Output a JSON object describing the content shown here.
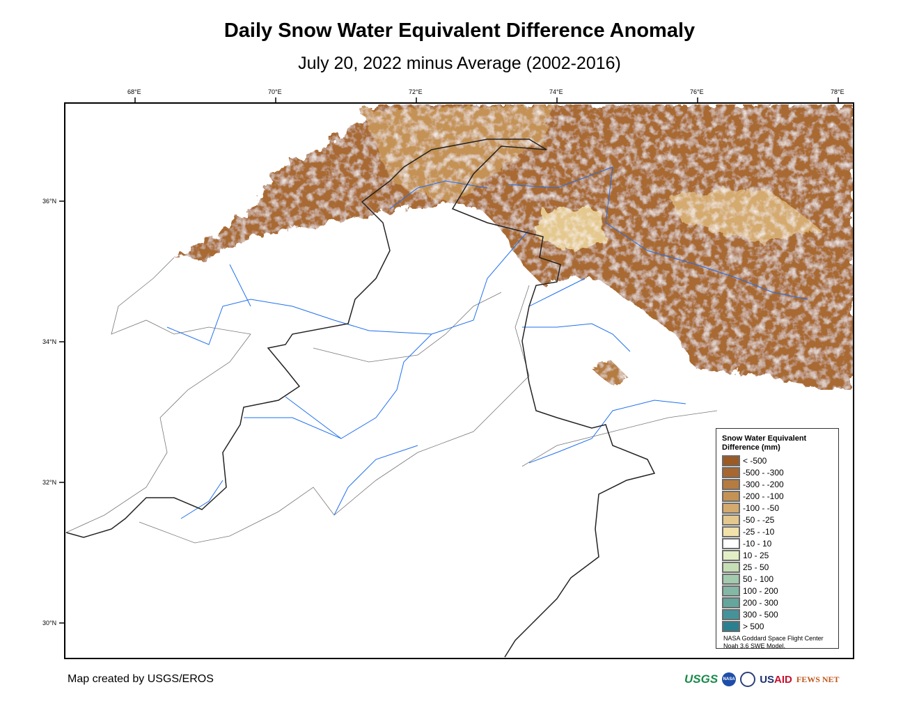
{
  "title": "Daily Snow Water Equivalent Difference Anomaly",
  "subtitle": "July 20, 2022 minus Average (2002-2016)",
  "longitude_ticks": [
    "68°E",
    "70°E",
    "72°E",
    "74°E",
    "76°E",
    "78°E"
  ],
  "latitude_ticks": [
    "36°N",
    "34°N",
    "32°N",
    "30°N"
  ],
  "legend": {
    "title_line1": "Snow Water Equivalent",
    "title_line2": "Difference (mm)",
    "classes": [
      {
        "label": "< -500",
        "color": "#9c5a24"
      },
      {
        "label": "-500 - -300",
        "color": "#a8672e"
      },
      {
        "label": "-300 - -200",
        "color": "#b57b40"
      },
      {
        "label": "-200 - -100",
        "color": "#c49254"
      },
      {
        "label": "-100 - -50",
        "color": "#d4aa6e"
      },
      {
        "label": "-50 - -25",
        "color": "#e4c88e"
      },
      {
        "label": "-25 - -10",
        "color": "#f2e2aa"
      },
      {
        "label": "-10 - 10",
        "color": "#ffffff"
      },
      {
        "label": "10 - 25",
        "color": "#e2efc6"
      },
      {
        "label": "25 - 50",
        "color": "#c6deb6"
      },
      {
        "label": "50 - 100",
        "color": "#a3cbae"
      },
      {
        "label": "100 - 200",
        "color": "#83b8a6"
      },
      {
        "label": "200 - 300",
        "color": "#64a69e"
      },
      {
        "label": "300 - 500",
        "color": "#45939a"
      },
      {
        "label": "> 500",
        "color": "#2a8090"
      }
    ],
    "source_line1": "NASA Goddard Space Flight Center",
    "source_line2": "Noah 3.6 SWE Model."
  },
  "credit": "Map created by USGS/EROS",
  "logos": {
    "usgs": "USGS",
    "nasa": "NASA",
    "usaid_a": "US",
    "usaid_b": "AID",
    "fews": "FEWS NET"
  }
}
